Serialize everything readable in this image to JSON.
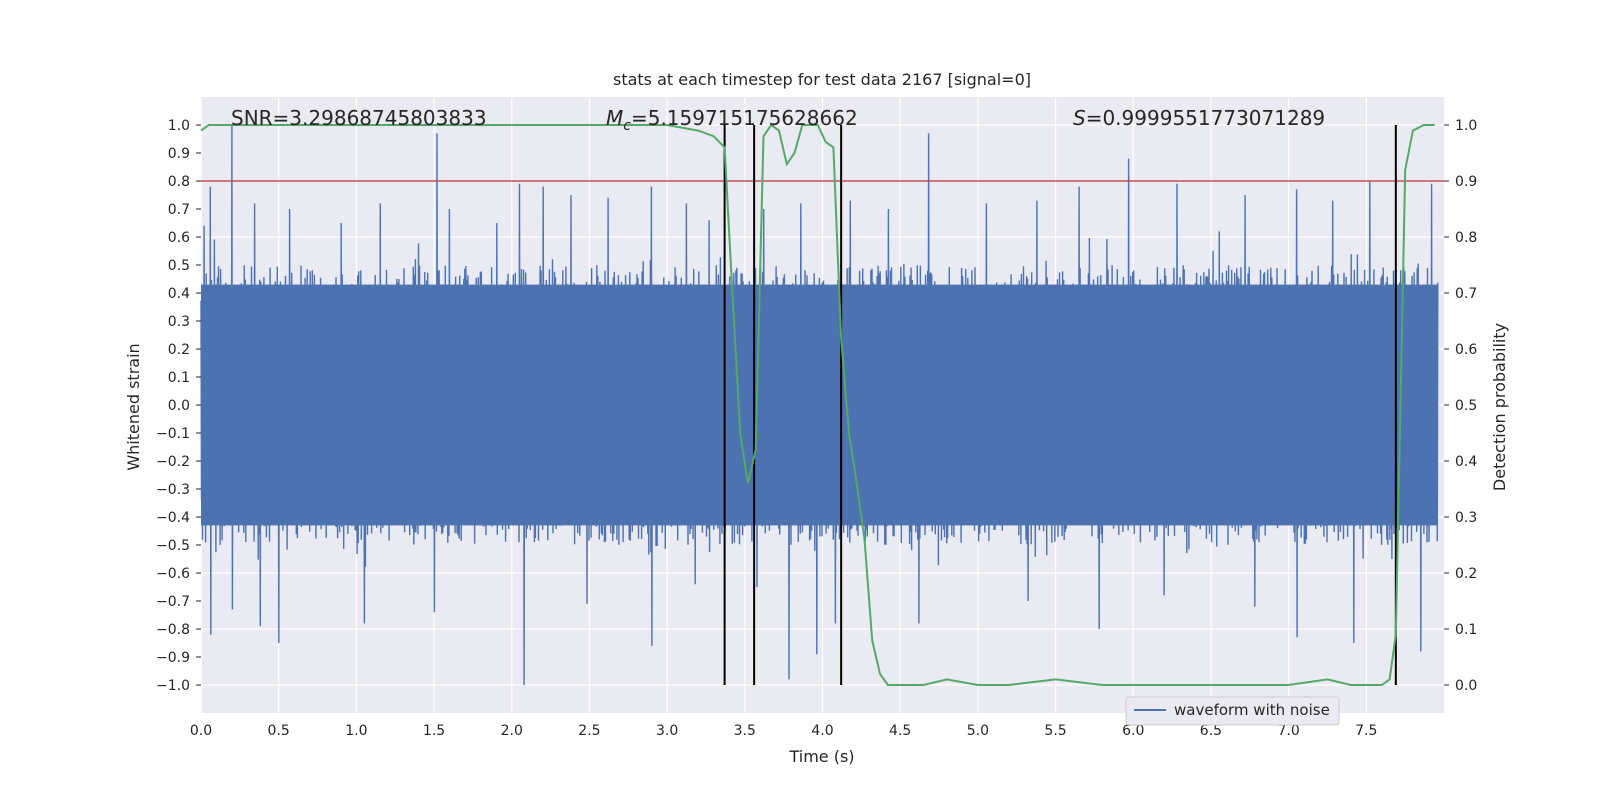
{
  "chart_data": {
    "type": "line",
    "title": "stats at each timestep for test data 2167 [signal=0]",
    "xlabel": "Time (s)",
    "ylabel": "Whitened strain",
    "y2label": "Detection probability",
    "xlim": [
      0.0,
      8.0
    ],
    "ylim": [
      -1.1,
      1.1
    ],
    "y2lim": [
      -0.05,
      1.05
    ],
    "xticks": [
      "0.0",
      "0.5",
      "1.0",
      "1.5",
      "2.0",
      "2.5",
      "3.0",
      "3.5",
      "4.0",
      "4.5",
      "5.0",
      "5.5",
      "6.0",
      "6.5",
      "7.0",
      "7.5"
    ],
    "yticks": [
      "1.0",
      "0.9",
      "0.8",
      "0.7",
      "0.6",
      "0.5",
      "0.4",
      "0.3",
      "0.2",
      "0.1",
      "0.0",
      "−0.1",
      "−0.2",
      "−0.3",
      "−0.4",
      "−0.5",
      "−0.6",
      "−0.7",
      "−0.8",
      "−0.9",
      "−1.0"
    ],
    "y2ticks": [
      "1.0",
      "0.9",
      "0.8",
      "0.7",
      "0.6",
      "0.5",
      "0.4",
      "0.3",
      "0.2",
      "0.1",
      "0.0"
    ],
    "grid": true,
    "legend": {
      "position": "lower-right",
      "entries": [
        "waveform with noise"
      ]
    },
    "annotations": {
      "snr_label": "SNR=3.29868745803833",
      "mc_symbol": "M",
      "mc_subscript": "c",
      "mc_value": "=5.159715175628662",
      "s_symbol": "S",
      "s_value": "=0.9999551773071289"
    },
    "threshold": 0.9,
    "vertical_lines_x": [
      3.37,
      3.56,
      4.12,
      7.69
    ],
    "series": [
      {
        "name": "waveform with noise",
        "description": "dense whitened-strain noise, absolute amplitude mostly within 0.2-0.6 with spikes up to 1.0",
        "peaks_up": [
          [
            0.02,
            0.64
          ],
          [
            0.06,
            0.78
          ],
          [
            0.2,
            1.0
          ],
          [
            0.34,
            0.72
          ],
          [
            0.57,
            0.7
          ],
          [
            0.9,
            0.65
          ],
          [
            1.15,
            0.72
          ],
          [
            1.52,
            0.97
          ],
          [
            1.6,
            0.7
          ],
          [
            1.9,
            0.65
          ],
          [
            2.05,
            0.79
          ],
          [
            2.2,
            0.78
          ],
          [
            2.38,
            0.75
          ],
          [
            2.62,
            0.74
          ],
          [
            2.9,
            0.78
          ],
          [
            3.12,
            0.72
          ],
          [
            3.27,
            0.66
          ],
          [
            3.48,
            0.47
          ],
          [
            3.62,
            0.7
          ],
          [
            3.86,
            0.72
          ],
          [
            4.18,
            0.73
          ],
          [
            4.42,
            0.7
          ],
          [
            4.68,
            0.97
          ],
          [
            5.05,
            0.72
          ],
          [
            5.38,
            0.73
          ],
          [
            5.65,
            0.78
          ],
          [
            5.97,
            0.88
          ],
          [
            6.28,
            0.79
          ],
          [
            6.55,
            0.62
          ],
          [
            6.72,
            0.75
          ],
          [
            7.05,
            0.77
          ],
          [
            7.28,
            0.73
          ],
          [
            7.52,
            0.8
          ],
          [
            7.92,
            0.79
          ]
        ],
        "peaks_down": [
          [
            0.06,
            -0.82
          ],
          [
            0.2,
            -0.73
          ],
          [
            0.38,
            -0.79
          ],
          [
            0.5,
            -0.85
          ],
          [
            1.05,
            -0.78
          ],
          [
            1.5,
            -0.74
          ],
          [
            2.08,
            -1.0
          ],
          [
            2.48,
            -0.71
          ],
          [
            2.9,
            -0.86
          ],
          [
            3.18,
            -0.64
          ],
          [
            3.58,
            -0.65
          ],
          [
            3.78,
            -0.98
          ],
          [
            3.96,
            -0.89
          ],
          [
            4.08,
            -0.78
          ],
          [
            4.62,
            -0.78
          ],
          [
            5.32,
            -0.7
          ],
          [
            5.78,
            -0.8
          ],
          [
            6.2,
            -0.68
          ],
          [
            6.78,
            -0.72
          ],
          [
            7.05,
            -0.83
          ],
          [
            7.42,
            -0.85
          ],
          [
            7.85,
            -0.88
          ]
        ]
      },
      {
        "name": "",
        "axis": "right",
        "color": "#55a868",
        "x": [
          0.0,
          0.05,
          0.3,
          0.5,
          1.0,
          1.5,
          2.0,
          2.5,
          3.0,
          3.2,
          3.3,
          3.37,
          3.42,
          3.47,
          3.52,
          3.57,
          3.62,
          3.67,
          3.72,
          3.77,
          3.82,
          3.87,
          3.92,
          3.97,
          4.02,
          4.07,
          4.12,
          4.17,
          4.22,
          4.27,
          4.32,
          4.37,
          4.42,
          4.5,
          4.65,
          4.8,
          5.0,
          5.2,
          5.5,
          5.8,
          6.0,
          6.2,
          6.5,
          7.0,
          7.25,
          7.4,
          7.6,
          7.65,
          7.69,
          7.75,
          7.8,
          7.87,
          7.94
        ],
        "y": [
          0.99,
          1.0,
          1.0,
          1.0,
          1.0,
          1.0,
          1.0,
          1.0,
          1.0,
          0.99,
          0.98,
          0.96,
          0.7,
          0.45,
          0.36,
          0.42,
          0.98,
          1.0,
          0.99,
          0.93,
          0.95,
          1.0,
          1.0,
          1.0,
          0.97,
          0.96,
          0.62,
          0.45,
          0.36,
          0.26,
          0.08,
          0.02,
          0.0,
          0.0,
          0.0,
          0.01,
          0.0,
          0.0,
          0.01,
          0.0,
          0.0,
          0.0,
          0.0,
          0.0,
          0.01,
          0.0,
          0.0,
          0.01,
          0.09,
          0.92,
          0.99,
          1.0,
          1.0
        ]
      }
    ]
  },
  "colors": {
    "waveform": "#4c72b0",
    "probability": "#55a868",
    "threshold": "#c44e52",
    "vlines": "#000000",
    "plot_bg": "#eaeaf2",
    "grid": "#ffffff",
    "text": "#262626"
  }
}
